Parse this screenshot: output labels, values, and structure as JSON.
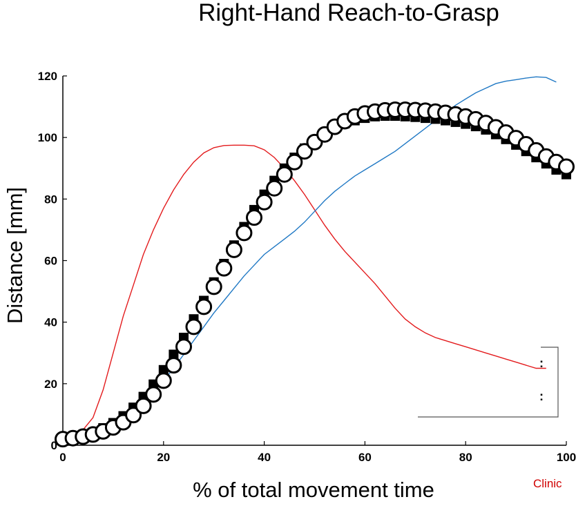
{
  "chart_data": {
    "type": "line",
    "title": "Right-Hand Reach-to-Grasp",
    "xlabel": "% of total movement time",
    "ylabel": "Distance [mm]",
    "xlim": [
      0,
      100
    ],
    "ylim": [
      0,
      120
    ],
    "x_ticks": [
      0,
      20,
      40,
      60,
      80,
      100
    ],
    "y_ticks": [
      0,
      20,
      40,
      60,
      80,
      100,
      120
    ],
    "x_tick_labels": [
      "0",
      "20",
      "40",
      "60",
      "80",
      "100"
    ],
    "y_tick_labels": [
      "0",
      "20",
      "40",
      "60",
      "80",
      "100",
      "120"
    ],
    "grid": false,
    "legend": "bottom-right",
    "legend_marks": [
      ":",
      ":"
    ],
    "annotation": "Clinic",
    "series": [
      {
        "marker": "filled-square",
        "color": "#000000",
        "x": [
          0,
          2,
          4,
          6,
          8,
          10,
          12,
          14,
          16,
          18,
          20,
          22,
          24,
          26,
          28,
          30,
          32,
          34,
          36,
          38,
          40,
          42,
          44,
          46,
          48,
          50,
          52,
          54,
          56,
          58,
          60,
          62,
          64,
          66,
          68,
          70,
          72,
          74,
          76,
          78,
          80,
          82,
          84,
          86,
          88,
          90,
          92,
          94,
          96,
          98,
          100
        ],
        "values": [
          2,
          2.5,
          3.2,
          4.2,
          5.6,
          7.3,
          9.5,
          12.3,
          15.8,
          19.8,
          24.5,
          29.5,
          35,
          41,
          47,
          53,
          59,
          65,
          71,
          76.5,
          81.5,
          86,
          90,
          93.5,
          96.5,
          99,
          101,
          103,
          104.5,
          105.5,
          106.3,
          106.8,
          107,
          107,
          106.8,
          106.6,
          106.3,
          106,
          105.5,
          105,
          104.4,
          103.6,
          102.5,
          101,
          99.4,
          97.6,
          95.5,
          93.5,
          91.5,
          89.5,
          88
        ]
      },
      {
        "marker": "open-circle",
        "color": "#000000",
        "x": [
          0,
          2,
          4,
          6,
          8,
          10,
          12,
          14,
          16,
          18,
          20,
          22,
          24,
          26,
          28,
          30,
          32,
          34,
          36,
          38,
          40,
          42,
          44,
          46,
          48,
          50,
          52,
          54,
          56,
          58,
          60,
          62,
          64,
          66,
          68,
          70,
          72,
          74,
          76,
          78,
          80,
          82,
          84,
          86,
          88,
          90,
          92,
          94,
          96,
          98,
          100
        ],
        "values": [
          2,
          2.3,
          2.8,
          3.5,
          4.5,
          5.8,
          7.5,
          9.8,
          12.8,
          16.5,
          21,
          26,
          32,
          38.5,
          45,
          51.5,
          57.5,
          63.5,
          69,
          74,
          79,
          83.5,
          88,
          92,
          95.5,
          98.5,
          101,
          103.5,
          105.3,
          106.8,
          107.8,
          108.4,
          108.8,
          109,
          109,
          108.9,
          108.7,
          108.4,
          108,
          107.5,
          106.8,
          105.9,
          104.7,
          103.3,
          101.6,
          99.8,
          97.8,
          95.8,
          93.8,
          92,
          90.5
        ]
      },
      {
        "color": "#e31a1c",
        "x": [
          0,
          2,
          4,
          6,
          8,
          10,
          12,
          14,
          16,
          18,
          20,
          22,
          24,
          26,
          28,
          30,
          32,
          34,
          36,
          38,
          40,
          42,
          44,
          46,
          48,
          50,
          52,
          54,
          56,
          58,
          60,
          62,
          64,
          66,
          68,
          70,
          72,
          74,
          76,
          78,
          80,
          82,
          84,
          86,
          88,
          90,
          92,
          94,
          96
        ],
        "values": [
          2,
          3,
          5,
          9,
          18,
          30,
          42,
          52,
          62,
          70,
          77,
          83,
          88,
          92,
          95,
          96.7,
          97.4,
          97.5,
          97.5,
          97.3,
          96,
          93.5,
          90,
          86,
          81.5,
          76.5,
          71.5,
          67,
          63,
          59.5,
          56,
          52.5,
          48.5,
          44.5,
          41,
          38.5,
          36.5,
          35,
          34,
          33,
          32,
          31,
          30,
          29,
          28,
          27,
          26,
          25,
          25
        ]
      },
      {
        "color": "#1f78c4",
        "x": [
          0,
          2,
          4,
          6,
          8,
          10,
          12,
          14,
          16,
          18,
          20,
          22,
          24,
          26,
          28,
          30,
          32,
          34,
          36,
          38,
          40,
          42,
          44,
          46,
          48,
          50,
          52,
          54,
          56,
          58,
          60,
          62,
          64,
          66,
          68,
          70,
          72,
          74,
          76,
          78,
          80,
          82,
          84,
          86,
          88,
          90,
          92,
          94,
          96,
          98
        ],
        "values": [
          2,
          2.5,
          3,
          3.8,
          5,
          6.5,
          8.5,
          11,
          14,
          17.5,
          21,
          25,
          29.5,
          34,
          38.5,
          43,
          47,
          51,
          55,
          58.5,
          62,
          64.5,
          67,
          69.5,
          72.5,
          76,
          79.5,
          82.5,
          85,
          87.5,
          89.5,
          91.5,
          93.5,
          95.5,
          98,
          100.5,
          103,
          105.5,
          108,
          110.5,
          112.5,
          114.5,
          116,
          117.5,
          118.3,
          118.8,
          119.3,
          119.7,
          119.5,
          118
        ]
      }
    ]
  }
}
